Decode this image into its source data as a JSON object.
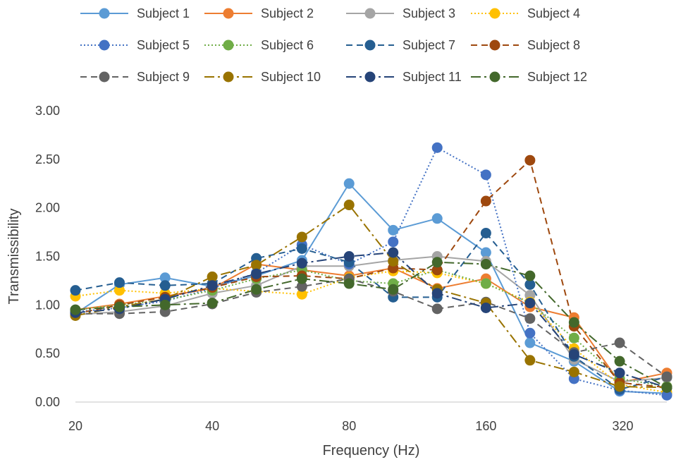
{
  "chart_data": {
    "type": "line",
    "title": "",
    "xlabel": "Frequency (Hz)",
    "ylabel": "Transmissibility",
    "x_scale": "log2",
    "x": [
      20,
      25,
      31.5,
      40,
      50,
      63,
      80,
      100,
      125,
      160,
      200,
      250,
      315,
      400
    ],
    "xticks": [
      20,
      40,
      80,
      160,
      320
    ],
    "xtick_labels": [
      "20",
      "40",
      "80",
      "160",
      "320"
    ],
    "xlim": [
      20,
      400
    ],
    "ylim": [
      0,
      3
    ],
    "yticks": [
      0,
      0.5,
      1,
      1.5,
      2,
      2.5,
      3
    ],
    "ytick_labels": [
      "0.00",
      "0.50",
      "1.00",
      "1.50",
      "2.00",
      "2.50",
      "3.00"
    ],
    "grid": false,
    "legend_position": "top",
    "series": [
      {
        "name": "Subject 1",
        "color": "#5B9BD5",
        "dash": "solid",
        "values": [
          0.91,
          1.21,
          1.28,
          1.19,
          1.3,
          1.46,
          2.25,
          1.77,
          1.89,
          1.54,
          0.61,
          0.42,
          0.11,
          0.09
        ]
      },
      {
        "name": "Subject 2",
        "color": "#ED7D31",
        "dash": "solid",
        "values": [
          0.95,
          1.01,
          1.09,
          1.17,
          1.42,
          1.36,
          1.3,
          1.38,
          1.17,
          1.27,
          0.98,
          0.87,
          0.2,
          0.3
        ]
      },
      {
        "name": "Subject 3",
        "color": "#A5A5A5",
        "dash": "solid",
        "values": [
          0.9,
          0.93,
          0.99,
          1.12,
          1.2,
          1.4,
          1.4,
          1.46,
          1.5,
          1.45,
          1.1,
          0.44,
          0.21,
          0.25
        ]
      },
      {
        "name": "Subject 4",
        "color": "#FFC000",
        "dash": "dot",
        "values": [
          1.09,
          1.15,
          1.12,
          1.17,
          1.14,
          1.11,
          1.28,
          1.35,
          1.33,
          1.22,
          1.03,
          0.55,
          0.18,
          0.1
        ]
      },
      {
        "name": "Subject 5",
        "color": "#4472C4",
        "dash": "dot",
        "values": [
          0.93,
          0.97,
          1.04,
          1.17,
          1.33,
          1.62,
          1.42,
          1.65,
          2.62,
          2.34,
          0.71,
          0.24,
          0.12,
          0.07
        ]
      },
      {
        "name": "Subject 6",
        "color": "#70AD47",
        "dash": "dot",
        "values": [
          0.95,
          1.0,
          1.05,
          1.15,
          1.27,
          1.36,
          1.25,
          1.22,
          1.36,
          1.22,
          1.02,
          0.66,
          0.24,
          0.16
        ]
      },
      {
        "name": "Subject 7",
        "color": "#255E91",
        "dash": "dash",
        "values": [
          1.15,
          1.23,
          1.2,
          1.22,
          1.48,
          1.58,
          1.44,
          1.08,
          1.08,
          1.74,
          1.21,
          0.47,
          0.13,
          0.26
        ]
      },
      {
        "name": "Subject 8",
        "color": "#9E480E",
        "dash": "dash",
        "values": [
          0.91,
          1.0,
          1.08,
          1.18,
          1.29,
          1.3,
          1.27,
          1.38,
          1.36,
          2.07,
          2.49,
          0.78,
          0.2,
          0.15
        ]
      },
      {
        "name": "Subject 9",
        "color": "#636363",
        "dash": "dash",
        "values": [
          0.91,
          0.91,
          0.93,
          1.01,
          1.13,
          1.19,
          1.27,
          1.14,
          0.96,
          1.03,
          0.86,
          0.51,
          0.61,
          0.26
        ]
      },
      {
        "name": "Subject 10",
        "color": "#997300",
        "dash": "dashdot",
        "values": [
          0.89,
          0.98,
          1.06,
          1.29,
          1.41,
          1.7,
          2.03,
          1.45,
          1.16,
          1.02,
          0.43,
          0.31,
          0.16,
          0.15
        ]
      },
      {
        "name": "Subject 11",
        "color": "#264478",
        "dash": "dashdot",
        "values": [
          0.92,
          0.96,
          1.06,
          1.2,
          1.32,
          1.43,
          1.5,
          1.54,
          1.12,
          0.97,
          1.02,
          0.49,
          0.3,
          0.15
        ]
      },
      {
        "name": "Subject 12",
        "color": "#43682B",
        "dash": "dashdot",
        "values": [
          0.95,
          0.98,
          1.0,
          1.02,
          1.16,
          1.27,
          1.22,
          1.16,
          1.44,
          1.42,
          1.3,
          0.82,
          0.42,
          0.15
        ]
      }
    ]
  }
}
